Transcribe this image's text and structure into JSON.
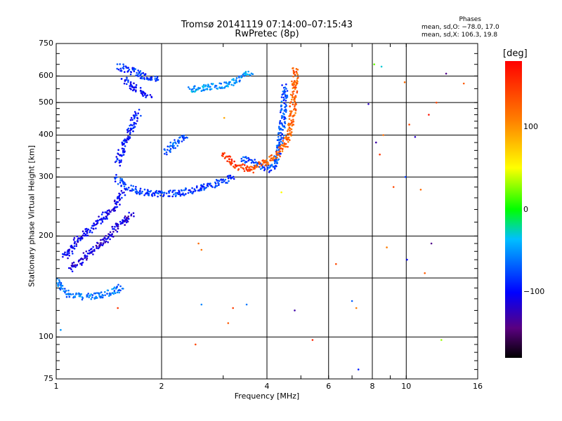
{
  "chart_data": {
    "type": "scatter",
    "title": [
      "Tromsø 20141119 07:14:00–07:15:43",
      "RwPretec (8p)"
    ],
    "stats": {
      "heading": "Phases",
      "line1": "mean, sd,O: −78.0, 17.0",
      "line2": "mean, sd,X: 106.3, 19.8"
    },
    "xlabel": "Frequency [MHz]",
    "ylabel": "Stationary phase Virtual Height [km]",
    "xscale": "log",
    "yscale": "log",
    "xlim": [
      1,
      16
    ],
    "ylim": [
      75,
      750
    ],
    "xticks": [
      1,
      2,
      4,
      6,
      8,
      10,
      16
    ],
    "xtick_labels": [
      "1",
      "2",
      "4",
      "6",
      "8",
      "10",
      "16"
    ],
    "yticks": [
      75,
      100,
      200,
      300,
      400,
      500,
      600,
      750
    ],
    "ytick_labels": [
      "75",
      "100",
      "200",
      "300",
      "400",
      "500",
      "600",
      "750"
    ],
    "xgrid": [
      1,
      2,
      4,
      6,
      8,
      10
    ],
    "ygrid": [
      100,
      150,
      200,
      300,
      400,
      500,
      600
    ],
    "grid": true,
    "colorbar": {
      "label": "[deg]",
      "range": [
        -180,
        180
      ],
      "ticks": [
        100,
        0,
        -100
      ],
      "tick_labels": [
        "100",
        "0",
        "−100"
      ]
    },
    "traces": [
      {
        "x": [
          1.0,
          1.03,
          1.07,
          1.12,
          1.18,
          1.25,
          1.33,
          1.42,
          1.5,
          1.55
        ],
        "y": [
          148,
          140,
          135,
          133,
          132,
          132,
          133,
          135,
          138,
          142
        ],
        "phase": -62
      },
      {
        "x": [
          1.05,
          1.1,
          1.15,
          1.22,
          1.28,
          1.35,
          1.4,
          1.45,
          1.5,
          1.52,
          1.55
        ],
        "y": [
          172,
          182,
          195,
          205,
          215,
          225,
          232,
          240,
          250,
          260,
          270
        ],
        "phase": -103
      },
      {
        "x": [
          1.1,
          1.15,
          1.22,
          1.3,
          1.38,
          1.45,
          1.5,
          1.55,
          1.6,
          1.65
        ],
        "y": [
          160,
          166,
          175,
          185,
          195,
          205,
          215,
          220,
          225,
          232
        ],
        "phase": -112
      },
      {
        "x": [
          1.48,
          1.52,
          1.56,
          1.62,
          1.7,
          1.8,
          1.9,
          2.0,
          2.2,
          2.4,
          2.6,
          2.8,
          3.0,
          3.2
        ],
        "y": [
          298,
          292,
          285,
          278,
          273,
          270,
          268,
          267,
          268,
          272,
          278,
          285,
          292,
          300
        ],
        "phase": -82
      },
      {
        "x": [
          1.5,
          1.53,
          1.56,
          1.6,
          1.64,
          1.68,
          1.72
        ],
        "y": [
          330,
          350,
          372,
          395,
          420,
          445,
          470
        ],
        "phase": -95
      },
      {
        "x": [
          1.5,
          1.58,
          1.65,
          1.72,
          1.8,
          1.88,
          1.95
        ],
        "y": [
          640,
          630,
          620,
          610,
          600,
          590,
          580
        ],
        "phase": -85
      },
      {
        "x": [
          1.55,
          1.6,
          1.65,
          1.7,
          1.75,
          1.8,
          1.85
        ],
        "y": [
          590,
          575,
          560,
          548,
          538,
          530,
          525
        ],
        "phase": -98
      },
      {
        "x": [
          2.4,
          2.6,
          2.8,
          3.0,
          3.2,
          3.4,
          3.6
        ],
        "y": [
          548,
          552,
          558,
          565,
          575,
          595,
          620
        ],
        "phase": -50
      },
      {
        "x": [
          3.4,
          3.55,
          3.7,
          3.85,
          4.0,
          4.15,
          4.3,
          4.42,
          4.5
        ],
        "y": [
          340,
          335,
          330,
          325,
          320,
          315,
          345,
          420,
          560
        ],
        "phase": -75
      },
      {
        "x": [
          3.6,
          3.7,
          3.85,
          4.0,
          4.2,
          4.4,
          4.55,
          4.65,
          4.72,
          4.76,
          4.8,
          4.82
        ],
        "y": [
          318,
          322,
          328,
          335,
          345,
          360,
          380,
          410,
          450,
          500,
          560,
          630
        ],
        "phase": 125
      },
      {
        "x": [
          3.0,
          3.1,
          3.2,
          3.35,
          3.5,
          3.65
        ],
        "y": [
          350,
          340,
          330,
          322,
          318,
          315
        ],
        "phase": 150
      },
      {
        "x": [
          2.05,
          2.15,
          2.25,
          2.35
        ],
        "y": [
          355,
          370,
          385,
          400
        ],
        "phase": -70
      }
    ],
    "scatter": [
      {
        "x": 2.55,
        "y": 190,
        "phase": 120
      },
      {
        "x": 2.6,
        "y": 182,
        "phase": 115
      },
      {
        "x": 2.5,
        "y": 95,
        "phase": 140
      },
      {
        "x": 2.6,
        "y": 125,
        "phase": -55
      },
      {
        "x": 3.1,
        "y": 110,
        "phase": 130
      },
      {
        "x": 3.2,
        "y": 122,
        "phase": 145
      },
      {
        "x": 3.5,
        "y": 125,
        "phase": -60
      },
      {
        "x": 4.4,
        "y": 270,
        "phase": 50
      },
      {
        "x": 4.8,
        "y": 120,
        "phase": -130
      },
      {
        "x": 5.4,
        "y": 98,
        "phase": 160
      },
      {
        "x": 6.3,
        "y": 165,
        "phase": 140
      },
      {
        "x": 7.0,
        "y": 128,
        "phase": -70
      },
      {
        "x": 7.2,
        "y": 122,
        "phase": 110
      },
      {
        "x": 7.3,
        "y": 80,
        "phase": -90
      },
      {
        "x": 7.8,
        "y": 495,
        "phase": -120
      },
      {
        "x": 8.2,
        "y": 380,
        "phase": -130
      },
      {
        "x": 8.4,
        "y": 350,
        "phase": 150
      },
      {
        "x": 8.6,
        "y": 400,
        "phase": 120
      },
      {
        "x": 8.8,
        "y": 185,
        "phase": 110
      },
      {
        "x": 9.2,
        "y": 280,
        "phase": 140
      },
      {
        "x": 9.9,
        "y": 575,
        "phase": 120
      },
      {
        "x": 9.95,
        "y": 300,
        "phase": -80
      },
      {
        "x": 10.05,
        "y": 170,
        "phase": -100
      },
      {
        "x": 10.2,
        "y": 430,
        "phase": 140
      },
      {
        "x": 10.6,
        "y": 395,
        "phase": -120
      },
      {
        "x": 11.0,
        "y": 275,
        "phase": 120
      },
      {
        "x": 11.3,
        "y": 155,
        "phase": 130
      },
      {
        "x": 11.6,
        "y": 460,
        "phase": 170
      },
      {
        "x": 11.8,
        "y": 190,
        "phase": -140
      },
      {
        "x": 12.2,
        "y": 500,
        "phase": 140
      },
      {
        "x": 12.6,
        "y": 98,
        "phase": 30
      },
      {
        "x": 13.0,
        "y": 610,
        "phase": -140
      },
      {
        "x": 14.6,
        "y": 570,
        "phase": 130
      },
      {
        "x": 8.1,
        "y": 650,
        "phase": 20
      },
      {
        "x": 8.5,
        "y": 640,
        "phase": -30
      },
      {
        "x": 1.03,
        "y": 105,
        "phase": -50
      },
      {
        "x": 1.5,
        "y": 122,
        "phase": 150
      },
      {
        "x": 3.02,
        "y": 450,
        "phase": 90
      }
    ]
  }
}
